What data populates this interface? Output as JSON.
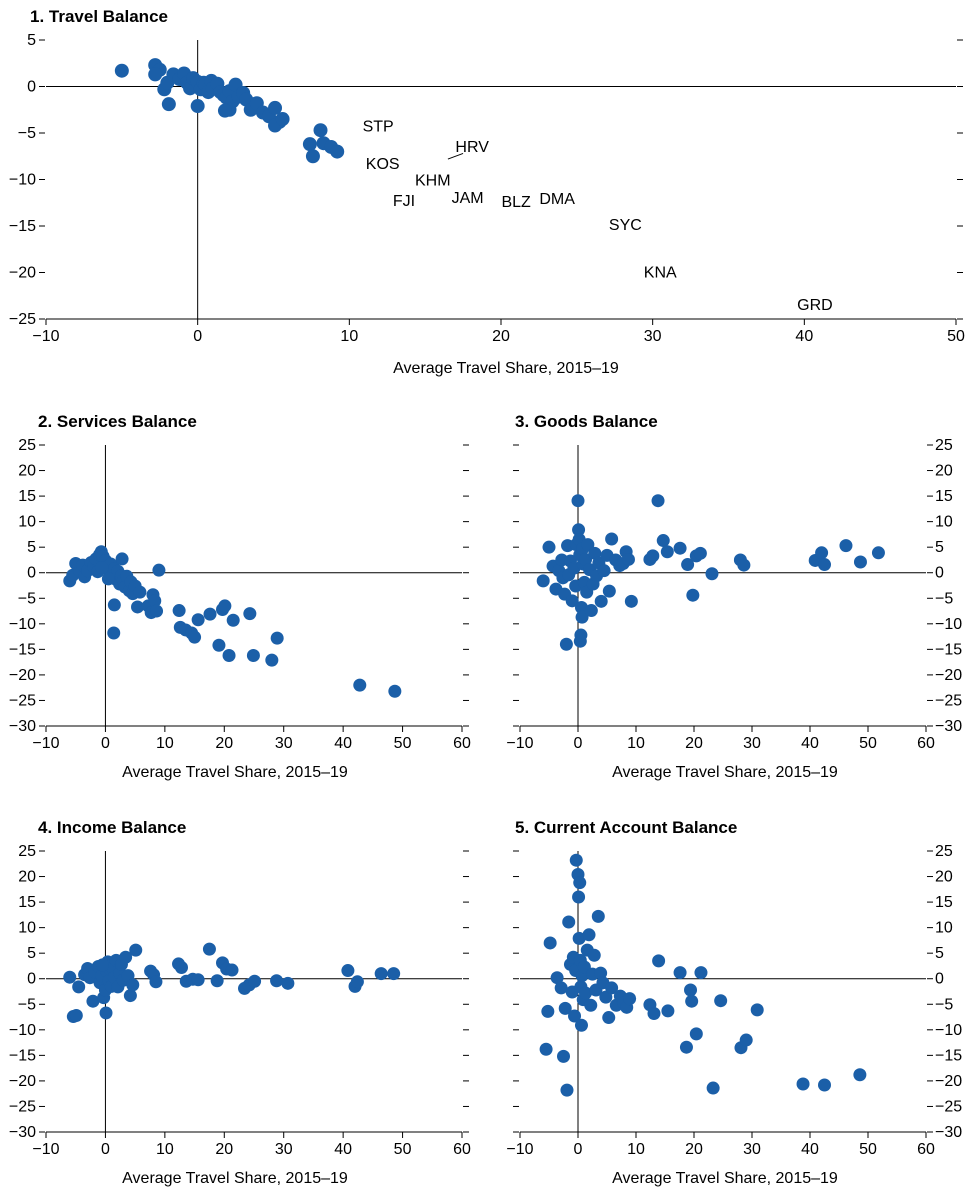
{
  "colors": {
    "marker": "#1B5FA8",
    "axis": "#000000"
  },
  "chart_data": [
    {
      "id": "p1",
      "type": "scatter",
      "title": "1. Travel Balance",
      "xlabel": "Average Travel Share, 2015–19",
      "xlim": [
        -10,
        50
      ],
      "ylim": [
        -25,
        5
      ],
      "xticks": [
        -10,
        0,
        10,
        20,
        30,
        40,
        50
      ],
      "yticks": [
        5,
        0,
        -5,
        -10,
        -15,
        -20,
        -25
      ],
      "y_axis_side": "left",
      "points": [
        [
          -5,
          1.7
        ],
        [
          -2.8,
          2.3
        ],
        [
          -2.5,
          1.8
        ],
        [
          -2.8,
          1.3
        ],
        [
          -2.2,
          -0.3
        ],
        [
          -2,
          0.4
        ],
        [
          -1.6,
          1.3
        ],
        [
          -1.2,
          0.8
        ],
        [
          -0.9,
          1.4
        ],
        [
          -0.7,
          0.4
        ],
        [
          -0.5,
          -0.2
        ],
        [
          -0.3,
          0.9
        ],
        [
          0,
          0.5
        ],
        [
          0.2,
          -0.3
        ],
        [
          0.4,
          0.4
        ],
        [
          0.5,
          0.2
        ],
        [
          0.7,
          -0.6
        ],
        [
          0.9,
          0.6
        ],
        [
          1,
          -0.2
        ],
        [
          1.3,
          0.3
        ],
        [
          1.5,
          -0.6
        ],
        [
          1.7,
          -0.9
        ],
        [
          1.9,
          -1.2
        ],
        [
          2.1,
          -0.5
        ],
        [
          2.3,
          -1.6
        ],
        [
          2.5,
          0.2
        ],
        [
          2.7,
          -1.1
        ],
        [
          3,
          -0.7
        ],
        [
          3.2,
          -1.4
        ],
        [
          3.5,
          -2.5
        ],
        [
          3.9,
          -1.8
        ],
        [
          4.3,
          -2.8
        ],
        [
          4.7,
          -3.2
        ],
        [
          5.1,
          -2.3
        ],
        [
          5.4,
          -3.8
        ],
        [
          5.1,
          -4.2
        ],
        [
          5.6,
          -3.5
        ],
        [
          -1.9,
          -1.9
        ],
        [
          0,
          -2.1
        ],
        [
          2.1,
          -2.5
        ],
        [
          1.8,
          -2.6
        ],
        [
          7.4,
          -6.2
        ],
        [
          7.6,
          -7.5
        ],
        [
          8.1,
          -4.7
        ],
        [
          8.3,
          -6.1
        ],
        [
          8.8,
          -6.5
        ],
        [
          9.2,
          -7
        ]
      ],
      "labels": [
        {
          "text": "STP",
          "x": 11.9,
          "y": -4.2
        },
        {
          "text": "HRV",
          "x": 18.1,
          "y": -6.4
        },
        {
          "text": "KOS",
          "x": 12.2,
          "y": -8.2
        },
        {
          "text": "KHM",
          "x": 15.5,
          "y": -10
        },
        {
          "text": "FJI",
          "x": 13.6,
          "y": -12.2
        },
        {
          "text": "JAM",
          "x": 17.8,
          "y": -11.9
        },
        {
          "text": "BLZ",
          "x": 21.0,
          "y": -12.3
        },
        {
          "text": "DMA",
          "x": 23.7,
          "y": -12
        },
        {
          "text": "SYC",
          "x": 28.2,
          "y": -14.8
        },
        {
          "text": "KNA",
          "x": 30.5,
          "y": -19.9
        },
        {
          "text": "GRD",
          "x": 40.7,
          "y": -23.4
        }
      ],
      "leader": {
        "x1": 16.5,
        "y1": -7.8,
        "x2": 17.5,
        "y2": -7.2
      }
    },
    {
      "id": "p2",
      "type": "scatter",
      "title": "2. Services Balance",
      "xlabel": "Average Travel Share, 2015–19",
      "xlim": [
        -10,
        60
      ],
      "ylim": [
        -30,
        25
      ],
      "xticks": [
        -10,
        0,
        10,
        20,
        30,
        40,
        50,
        60
      ],
      "yticks": [
        25,
        20,
        15,
        10,
        5,
        0,
        -5,
        -10,
        -15,
        -20,
        -25,
        -30
      ],
      "y_axis_side": "left",
      "points": [
        [
          -6,
          -1.6
        ],
        [
          -5.5,
          -0.5
        ],
        [
          -5,
          1.8
        ],
        [
          -4.3,
          0.3
        ],
        [
          -3.8,
          1.5
        ],
        [
          -3.5,
          -0.8
        ],
        [
          -3,
          0.4
        ],
        [
          -2.4,
          2
        ],
        [
          -2,
          1.2
        ],
        [
          -1.6,
          2.7
        ],
        [
          -1.3,
          0.2
        ],
        [
          -1,
          3.5
        ],
        [
          -0.7,
          4.1
        ],
        [
          -0.4,
          3.2
        ],
        [
          0,
          2.4
        ],
        [
          0.3,
          1.2
        ],
        [
          0.6,
          0.4
        ],
        [
          0.9,
          1.7
        ],
        [
          1.2,
          -0.5
        ],
        [
          1.5,
          0.8
        ],
        [
          1.8,
          -1.3
        ],
        [
          2.1,
          0.3
        ],
        [
          2.4,
          -2.2
        ],
        [
          2.7,
          -0.6
        ],
        [
          3,
          -1.5
        ],
        [
          3.3,
          -2.8
        ],
        [
          3.6,
          -0.7
        ],
        [
          4,
          -3.5
        ],
        [
          4.3,
          -1.8
        ],
        [
          4.6,
          -4.1
        ],
        [
          5,
          -2.6
        ],
        [
          5.4,
          -6.7
        ],
        [
          5.8,
          -3.8
        ],
        [
          1.5,
          -6.3
        ],
        [
          1.4,
          -11.8
        ],
        [
          2.8,
          2.7
        ],
        [
          0.5,
          -1.2
        ],
        [
          -0.6,
          1
        ],
        [
          7.2,
          -6.5
        ],
        [
          7.7,
          -7.8
        ],
        [
          8,
          -4.3
        ],
        [
          8.3,
          -5.5
        ],
        [
          8.6,
          -7.5
        ],
        [
          9,
          0.5
        ],
        [
          12.4,
          -7.4
        ],
        [
          12.6,
          -10.7
        ],
        [
          13.5,
          -11.2
        ],
        [
          14.5,
          -11.8
        ],
        [
          15,
          -12.6
        ],
        [
          15.6,
          -9.2
        ],
        [
          17.6,
          -8.1
        ],
        [
          19.1,
          -14.2
        ],
        [
          19.7,
          -7.2
        ],
        [
          20.1,
          -6.5
        ],
        [
          20.8,
          -16.2
        ],
        [
          21.5,
          -9.3
        ],
        [
          24.3,
          -8
        ],
        [
          24.9,
          -16.2
        ],
        [
          28,
          -17.1
        ],
        [
          28.9,
          -12.8
        ],
        [
          42.8,
          -22
        ],
        [
          48.7,
          -23.2
        ]
      ]
    },
    {
      "id": "p3",
      "type": "scatter",
      "title": "3. Goods Balance",
      "xlabel": "Average Travel Share, 2015–19",
      "xlim": [
        -10,
        60
      ],
      "ylim": [
        -30,
        25
      ],
      "xticks": [
        -10,
        0,
        10,
        20,
        30,
        40,
        50,
        60
      ],
      "yticks": [
        25,
        20,
        15,
        10,
        5,
        0,
        -5,
        -10,
        -15,
        -20,
        -25,
        -30
      ],
      "y_axis_side": "right",
      "points": [
        [
          -6,
          -1.6
        ],
        [
          -5,
          5
        ],
        [
          -4.3,
          1.3
        ],
        [
          -3.8,
          -3.2
        ],
        [
          -3.3,
          0.4
        ],
        [
          -2.8,
          2.5
        ],
        [
          -2.6,
          -1
        ],
        [
          -2.3,
          -4.2
        ],
        [
          -2,
          -14
        ],
        [
          -1.8,
          5.3
        ],
        [
          -1.6,
          -0.4
        ],
        [
          -1.3,
          2.3
        ],
        [
          -1,
          -5.5
        ],
        [
          -0.7,
          0.9
        ],
        [
          -0.4,
          -2.6
        ],
        [
          -0.3,
          5.5
        ],
        [
          0,
          14.1
        ],
        [
          0.1,
          8.4
        ],
        [
          0.2,
          6.5
        ],
        [
          0.3,
          3.5
        ],
        [
          0.4,
          -13.4
        ],
        [
          0.5,
          -12.2
        ],
        [
          0.6,
          -6.8
        ],
        [
          0.7,
          -8.7
        ],
        [
          0.8,
          4.7
        ],
        [
          0.9,
          1.7
        ],
        [
          1.1,
          -1.9
        ],
        [
          1.3,
          2.6
        ],
        [
          1.5,
          -3.8
        ],
        [
          1.7,
          5.5
        ],
        [
          2,
          0.6
        ],
        [
          2.3,
          -7.4
        ],
        [
          2.6,
          -2.2
        ],
        [
          2.9,
          3.8
        ],
        [
          3.2,
          -0.6
        ],
        [
          3.6,
          1.9
        ],
        [
          4,
          -5.6
        ],
        [
          4.5,
          0.4
        ],
        [
          5,
          3.4
        ],
        [
          5.4,
          -3.6
        ],
        [
          5.8,
          6.6
        ],
        [
          6.5,
          2.5
        ],
        [
          7.2,
          1.4
        ],
        [
          7.8,
          1.8
        ],
        [
          8.3,
          4.1
        ],
        [
          8.7,
          2.6
        ],
        [
          9.2,
          -5.6
        ],
        [
          12.4,
          2.6
        ],
        [
          12.9,
          3.3
        ],
        [
          13.8,
          14.1
        ],
        [
          14.7,
          6.3
        ],
        [
          15.4,
          4.1
        ],
        [
          17.6,
          4.8
        ],
        [
          18.9,
          1.6
        ],
        [
          19.8,
          -4.4
        ],
        [
          20.4,
          3.3
        ],
        [
          21.1,
          3.8
        ],
        [
          23.1,
          -0.2
        ],
        [
          28,
          2.5
        ],
        [
          28.6,
          1.5
        ],
        [
          40.9,
          2.4
        ],
        [
          42,
          3.9
        ],
        [
          42.5,
          1.6
        ],
        [
          46.2,
          5.3
        ],
        [
          48.7,
          2.1
        ],
        [
          51.8,
          3.9
        ]
      ]
    },
    {
      "id": "p4",
      "type": "scatter",
      "title": "4. Income Balance",
      "xlabel": "Average Travel Share, 2015–19",
      "xlim": [
        -10,
        60
      ],
      "ylim": [
        -30,
        25
      ],
      "xticks": [
        -10,
        0,
        10,
        20,
        30,
        40,
        50,
        60
      ],
      "yticks": [
        25,
        20,
        15,
        10,
        5,
        0,
        -5,
        -10,
        -15,
        -20,
        -25,
        -30
      ],
      "y_axis_side": "left",
      "points": [
        [
          -6,
          0.3
        ],
        [
          -5.4,
          -7.4
        ],
        [
          -4.9,
          -7.2
        ],
        [
          -4.5,
          -1.6
        ],
        [
          -3.5,
          0.8
        ],
        [
          -3,
          2
        ],
        [
          -2.6,
          0.2
        ],
        [
          -2.1,
          -4.4
        ],
        [
          -1.8,
          1.3
        ],
        [
          -1.2,
          2.4
        ],
        [
          -0.9,
          -0.8
        ],
        [
          -0.6,
          0.6
        ],
        [
          -0.3,
          -3.7
        ],
        [
          0,
          -2.2
        ],
        [
          0.2,
          1.5
        ],
        [
          0.4,
          3.3
        ],
        [
          0.6,
          -0.4
        ],
        [
          0.8,
          1.9
        ],
        [
          1,
          -1.5
        ],
        [
          1.2,
          2.1
        ],
        [
          1.5,
          0.3
        ],
        [
          1.8,
          3.6
        ],
        [
          2.1,
          -1.6
        ],
        [
          2.4,
          1.1
        ],
        [
          2.7,
          2.8
        ],
        [
          3,
          -0.3
        ],
        [
          3.4,
          4.2
        ],
        [
          3.8,
          0.6
        ],
        [
          4.2,
          -3.3
        ],
        [
          4.6,
          -1.2
        ],
        [
          5.1,
          5.6
        ],
        [
          0.1,
          -6.7
        ],
        [
          -0.5,
          2.7
        ],
        [
          7.6,
          1.5
        ],
        [
          8.1,
          0.8
        ],
        [
          8.5,
          -0.6
        ],
        [
          12.3,
          2.9
        ],
        [
          12.8,
          2.2
        ],
        [
          13.6,
          -0.5
        ],
        [
          14.7,
          -0.1
        ],
        [
          15.6,
          -0.2
        ],
        [
          17.5,
          5.8
        ],
        [
          18.8,
          -0.4
        ],
        [
          19.7,
          3.1
        ],
        [
          20.4,
          1.9
        ],
        [
          21.3,
          1.7
        ],
        [
          23.4,
          -1.9
        ],
        [
          24.2,
          -1.2
        ],
        [
          25.1,
          -0.5
        ],
        [
          28.8,
          -0.4
        ],
        [
          30.7,
          -0.9
        ],
        [
          40.8,
          1.6
        ],
        [
          42,
          -1.5
        ],
        [
          42.4,
          -0.6
        ],
        [
          46.4,
          1
        ],
        [
          48.5,
          1
        ]
      ]
    },
    {
      "id": "p5",
      "type": "scatter",
      "title": "5. Current Account Balance",
      "xlabel": "Average Travel Share, 2015–19",
      "xlim": [
        -10,
        60
      ],
      "ylim": [
        -30,
        25
      ],
      "xticks": [
        -10,
        0,
        10,
        20,
        30,
        40,
        50,
        60
      ],
      "yticks": [
        25,
        20,
        15,
        10,
        5,
        0,
        -5,
        -10,
        -15,
        -20,
        -25,
        -30
      ],
      "y_axis_side": "right",
      "points": [
        [
          -5.5,
          -13.8
        ],
        [
          -5.2,
          -6.4
        ],
        [
          -4.8,
          7
        ],
        [
          -3.6,
          0.2
        ],
        [
          -2.9,
          -1.8
        ],
        [
          -2.5,
          -15.2
        ],
        [
          -2.2,
          -5.8
        ],
        [
          -1.9,
          -21.8
        ],
        [
          -1.6,
          11.1
        ],
        [
          -1.3,
          2.8
        ],
        [
          -1,
          -2.6
        ],
        [
          -0.8,
          4.2
        ],
        [
          -0.6,
          -7.3
        ],
        [
          -0.4,
          1.6
        ],
        [
          -0.3,
          23.2
        ],
        [
          0,
          20.4
        ],
        [
          0.3,
          18.8
        ],
        [
          0.1,
          16
        ],
        [
          0.2,
          7.9
        ],
        [
          0.4,
          3.6
        ],
        [
          0.5,
          -1.6
        ],
        [
          0.6,
          -9.1
        ],
        [
          0.7,
          0.6
        ],
        [
          0.9,
          -4.1
        ],
        [
          1.1,
          2.3
        ],
        [
          1.3,
          -2.8
        ],
        [
          1.6,
          5.6
        ],
        [
          1.9,
          8.6
        ],
        [
          2.2,
          -5.2
        ],
        [
          2.5,
          0.9
        ],
        [
          2.8,
          4.6
        ],
        [
          3.1,
          -2.2
        ],
        [
          3.5,
          12.2
        ],
        [
          3.9,
          1.1
        ],
        [
          4.3,
          -0.8
        ],
        [
          4.8,
          -3.6
        ],
        [
          5.3,
          -7.6
        ],
        [
          5.8,
          -1.8
        ],
        [
          6.6,
          -5.2
        ],
        [
          7.3,
          -3.4
        ],
        [
          7.9,
          -4.7
        ],
        [
          8.4,
          -5.6
        ],
        [
          8.9,
          -3.9
        ],
        [
          12.4,
          -5.1
        ],
        [
          13.1,
          -6.8
        ],
        [
          13.9,
          3.5
        ],
        [
          15.5,
          -6.3
        ],
        [
          17.6,
          1.2
        ],
        [
          18.7,
          -13.4
        ],
        [
          19.4,
          -2.2
        ],
        [
          19.6,
          -4.4
        ],
        [
          20.4,
          -10.8
        ],
        [
          21.2,
          1.2
        ],
        [
          23.3,
          -21.4
        ],
        [
          24.6,
          -4.3
        ],
        [
          28.1,
          -13.5
        ],
        [
          29,
          -12
        ],
        [
          30.9,
          -6.1
        ],
        [
          38.8,
          -20.6
        ],
        [
          42.5,
          -20.8
        ],
        [
          48.6,
          -18.8
        ]
      ]
    }
  ]
}
